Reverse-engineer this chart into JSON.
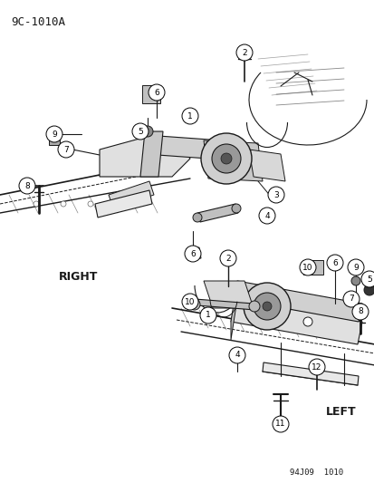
{
  "title": "9C-1010A",
  "footer": "94J09  1010",
  "label_right": "RIGHT",
  "label_left": "LEFT",
  "bg": "#ffffff",
  "lc": "#1a1a1a",
  "figure_width": 4.14,
  "figure_height": 5.33,
  "dpi": 100
}
